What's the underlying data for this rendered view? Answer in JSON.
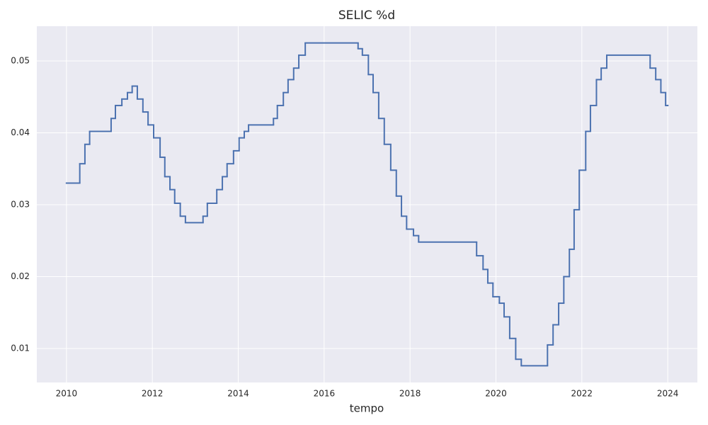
{
  "chart_data": {
    "type": "line",
    "step": "post",
    "title": "SELIC %d",
    "xlabel": "tempo",
    "x": [
      2010.0,
      2010.31,
      2010.43,
      2010.54,
      2011.04,
      2011.14,
      2011.29,
      2011.42,
      2011.53,
      2011.65,
      2011.78,
      2011.9,
      2012.03,
      2012.18,
      2012.29,
      2012.41,
      2012.52,
      2012.65,
      2012.77,
      2013.18,
      2013.28,
      2013.5,
      2013.63,
      2013.74,
      2013.89,
      2014.02,
      2014.14,
      2014.24,
      2014.82,
      2014.91,
      2015.05,
      2015.16,
      2015.29,
      2015.41,
      2015.56,
      2016.79,
      2016.89,
      2017.03,
      2017.14,
      2017.27,
      2017.4,
      2017.55,
      2017.68,
      2017.8,
      2017.92,
      2018.08,
      2018.2,
      2019.55,
      2019.7,
      2019.81,
      2019.93,
      2020.08,
      2020.19,
      2020.32,
      2020.46,
      2020.59,
      2021.2,
      2021.33,
      2021.46,
      2021.58,
      2021.71,
      2021.82,
      2021.94,
      2022.09,
      2022.2,
      2022.34,
      2022.45,
      2022.58,
      2023.59,
      2023.72,
      2023.84,
      2023.95,
      2024.0
    ],
    "series": [
      {
        "name": "SELIC",
        "color": "#4c72b0",
        "values": [
          0.033,
          0.0357,
          0.0384,
          0.0402,
          0.042,
          0.0438,
          0.0447,
          0.0456,
          0.0465,
          0.0447,
          0.0429,
          0.0411,
          0.0393,
          0.0366,
          0.0339,
          0.0321,
          0.0302,
          0.0284,
          0.0275,
          0.0284,
          0.0302,
          0.0321,
          0.0339,
          0.0357,
          0.0375,
          0.0393,
          0.0402,
          0.0411,
          0.042,
          0.0438,
          0.0456,
          0.0474,
          0.049,
          0.0508,
          0.0525,
          0.0517,
          0.0508,
          0.0481,
          0.0456,
          0.042,
          0.0384,
          0.0348,
          0.0312,
          0.0284,
          0.0266,
          0.0257,
          0.0248,
          0.0229,
          0.021,
          0.0191,
          0.0172,
          0.0163,
          0.0144,
          0.0114,
          0.0085,
          0.0076,
          0.0105,
          0.0133,
          0.0163,
          0.02,
          0.0238,
          0.0293,
          0.0348,
          0.0402,
          0.0438,
          0.0474,
          0.049,
          0.0508,
          0.049,
          0.0474,
          0.0456,
          0.0438,
          0.0438
        ]
      }
    ],
    "xlim": [
      2009.31,
      2024.69
    ],
    "xticks": [
      2010,
      2012,
      2014,
      2016,
      2018,
      2020,
      2022,
      2024
    ],
    "ylim": [
      0.00527,
      0.05483
    ],
    "yticks": [
      0.01,
      0.02,
      0.03,
      0.04,
      0.05
    ],
    "grid": true,
    "background": "#eaeaf2"
  }
}
